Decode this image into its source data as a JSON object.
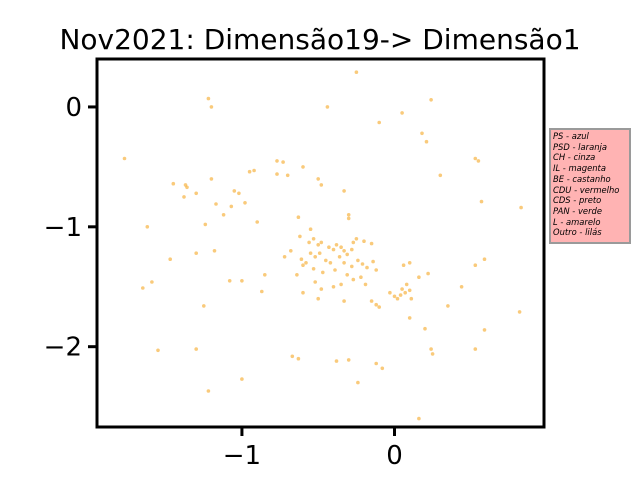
{
  "chart_data": {
    "type": "scatter",
    "title": "Nov2021: Dimensão19-> Dimensão1",
    "xlabel": "",
    "ylabel": "",
    "xlim": [
      -1.95,
      0.98
    ],
    "ylim": [
      -2.67,
      0.4
    ],
    "xticks": [
      {
        "value": -1,
        "label": "−1"
      },
      {
        "value": 0,
        "label": "0"
      }
    ],
    "yticks": [
      {
        "value": 0,
        "label": "0"
      },
      {
        "value": -1,
        "label": "−1"
      },
      {
        "value": -2,
        "label": "−2"
      }
    ],
    "grid": false,
    "point_color": "#f5a623",
    "legend_position": "right",
    "legend_color": "#ffb3b3",
    "legend_entries": [
      "PS - azul",
      "PSD - laranja",
      "CH - cinza",
      "IL - magenta",
      "BE - castanho",
      "CDU - vermelho",
      "CDS - preto",
      "PAN - verde",
      "L - amarelo",
      "Outro - lilás"
    ],
    "points": [
      [
        -0.25,
        0.29
      ],
      [
        -1.22,
        0.07
      ],
      [
        -1.2,
        0.0
      ],
      [
        -0.44,
        0.0
      ],
      [
        0.05,
        -0.05
      ],
      [
        0.24,
        0.06
      ],
      [
        -0.1,
        -0.13
      ],
      [
        0.18,
        -0.22
      ],
      [
        0.21,
        -0.29
      ],
      [
        -1.77,
        -0.43
      ],
      [
        -0.77,
        -0.45
      ],
      [
        -0.73,
        -0.46
      ],
      [
        -0.7,
        -0.57
      ],
      [
        -0.77,
        -0.56
      ],
      [
        -0.6,
        -0.5
      ],
      [
        0.53,
        -0.43
      ],
      [
        0.55,
        -0.45
      ],
      [
        -0.92,
        -0.53
      ],
      [
        -0.95,
        -0.54
      ],
      [
        -1.45,
        -0.64
      ],
      [
        -1.37,
        -0.65
      ],
      [
        -1.36,
        -0.67
      ],
      [
        -1.2,
        -0.6
      ],
      [
        -1.3,
        -0.72
      ],
      [
        -1.38,
        -0.75
      ],
      [
        -1.05,
        -0.7
      ],
      [
        -1.02,
        -0.72
      ],
      [
        -0.5,
        -0.6
      ],
      [
        -0.48,
        -0.65
      ],
      [
        -0.33,
        -0.7
      ],
      [
        0.3,
        -0.57
      ],
      [
        -1.17,
        -0.81
      ],
      [
        -0.98,
        -0.8
      ],
      [
        -1.07,
        -0.83
      ],
      [
        -1.12,
        -0.9
      ],
      [
        -0.9,
        -0.96
      ],
      [
        -1.24,
        -0.98
      ],
      [
        -0.3,
        -0.9
      ],
      [
        -0.3,
        -0.93
      ],
      [
        0.57,
        -0.79
      ],
      [
        0.83,
        -0.84
      ],
      [
        -1.62,
        -1.0
      ],
      [
        -0.63,
        -0.92
      ],
      [
        -0.55,
        -1.02
      ],
      [
        -0.62,
        -1.08
      ],
      [
        -0.53,
        -1.1
      ],
      [
        -0.56,
        -1.13
      ],
      [
        -0.5,
        -1.15
      ],
      [
        -0.48,
        -1.13
      ],
      [
        -0.43,
        -1.17
      ],
      [
        -0.4,
        -1.19
      ],
      [
        -0.38,
        -1.15
      ],
      [
        -0.35,
        -1.17
      ],
      [
        -0.33,
        -1.2
      ],
      [
        -0.31,
        -1.23
      ],
      [
        -0.28,
        -1.19
      ],
      [
        -0.27,
        -1.13
      ],
      [
        -0.25,
        -1.1
      ],
      [
        -0.2,
        -1.12
      ],
      [
        -0.15,
        -1.14
      ],
      [
        -0.36,
        -1.25
      ],
      [
        -0.33,
        -1.3
      ],
      [
        -0.28,
        -1.33
      ],
      [
        -0.24,
        -1.28
      ],
      [
        -0.21,
        -1.31
      ],
      [
        -0.18,
        -1.34
      ],
      [
        -0.14,
        -1.29
      ],
      [
        -0.12,
        -1.36
      ],
      [
        -0.55,
        -1.22
      ],
      [
        -0.52,
        -1.25
      ],
      [
        -0.49,
        -1.22
      ],
      [
        -0.45,
        -1.28
      ],
      [
        -0.42,
        -1.3
      ],
      [
        -0.58,
        -1.3
      ],
      [
        -0.61,
        -1.27
      ],
      [
        -0.68,
        -1.2
      ],
      [
        -0.72,
        -1.25
      ],
      [
        -1.47,
        -1.27
      ],
      [
        -1.3,
        -1.22
      ],
      [
        -1.18,
        -1.2
      ],
      [
        -0.85,
        -1.4
      ],
      [
        -1.08,
        -1.45
      ],
      [
        -1.0,
        -1.45
      ],
      [
        -0.64,
        -1.4
      ],
      [
        -0.6,
        -1.32
      ],
      [
        -0.53,
        -1.35
      ],
      [
        -0.47,
        -1.38
      ],
      [
        -0.39,
        -1.36
      ],
      [
        -0.31,
        -1.4
      ],
      [
        -0.27,
        -1.44
      ],
      [
        -0.22,
        -1.42
      ],
      [
        -0.19,
        -1.48
      ],
      [
        -0.35,
        -1.48
      ],
      [
        -0.4,
        -1.5
      ],
      [
        -0.48,
        -1.52
      ],
      [
        -0.52,
        -1.46
      ],
      [
        -1.59,
        -1.46
      ],
      [
        -1.65,
        -1.51
      ],
      [
        -0.87,
        -1.54
      ],
      [
        -0.6,
        -1.55
      ],
      [
        -0.5,
        -1.6
      ],
      [
        -0.33,
        -1.62
      ],
      [
        -0.15,
        -1.62
      ],
      [
        -0.12,
        -1.65
      ],
      [
        -0.1,
        -1.67
      ],
      [
        -0.03,
        -1.55
      ],
      [
        0.0,
        -1.58
      ],
      [
        0.02,
        -1.6
      ],
      [
        0.04,
        -1.57
      ],
      [
        0.07,
        -1.55
      ],
      [
        0.1,
        -1.53
      ],
      [
        0.11,
        -1.6
      ],
      [
        0.05,
        -1.52
      ],
      [
        0.08,
        -1.48
      ],
      [
        0.1,
        -1.3
      ],
      [
        0.06,
        -1.32
      ],
      [
        0.16,
        -1.42
      ],
      [
        0.22,
        -1.39
      ],
      [
        0.35,
        -1.66
      ],
      [
        0.44,
        -1.5
      ],
      [
        0.53,
        -1.32
      ],
      [
        0.59,
        -1.27
      ],
      [
        -1.25,
        -1.66
      ],
      [
        0.82,
        -1.71
      ],
      [
        0.1,
        -1.76
      ],
      [
        0.2,
        -1.85
      ],
      [
        0.59,
        -1.86
      ],
      [
        -1.55,
        -2.03
      ],
      [
        -1.3,
        -2.02
      ],
      [
        -0.67,
        -2.08
      ],
      [
        -0.63,
        -2.1
      ],
      [
        -0.38,
        -2.12
      ],
      [
        -0.3,
        -2.11
      ],
      [
        0.24,
        -2.02
      ],
      [
        0.25,
        -2.06
      ],
      [
        0.53,
        -2.02
      ],
      [
        -0.12,
        -2.14
      ],
      [
        -0.08,
        -2.18
      ],
      [
        -1.0,
        -2.27
      ],
      [
        -0.24,
        -2.3
      ],
      [
        -1.22,
        -2.37
      ],
      [
        0.16,
        -2.6
      ]
    ]
  }
}
